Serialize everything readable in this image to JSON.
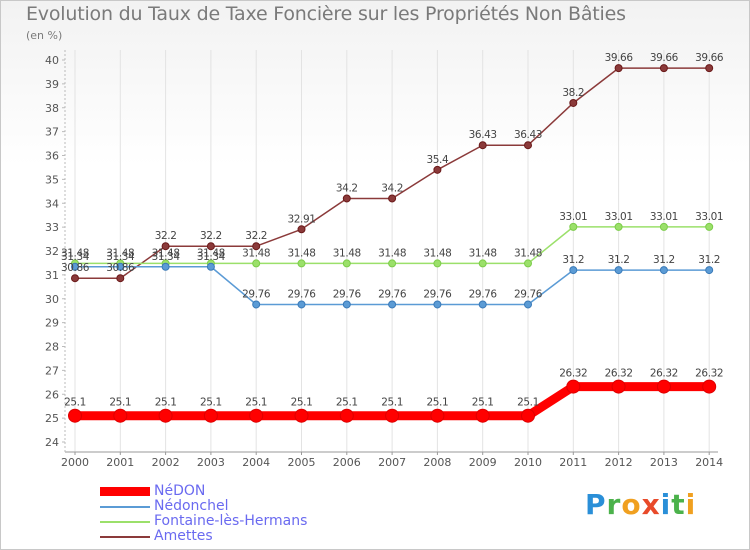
{
  "title": "Evolution du Taux de Taxe Foncière sur les Propriétés Non Bâties",
  "unit": "(en %)",
  "brand": {
    "text": "Proxiti",
    "letters": [
      {
        "ch": "P",
        "color": "#2a8fd8"
      },
      {
        "ch": "r",
        "color": "#4bb24b"
      },
      {
        "ch": "o",
        "color": "#f0a020"
      },
      {
        "ch": "x",
        "color": "#e84a2a"
      },
      {
        "ch": "i",
        "color": "#2a8fd8"
      },
      {
        "ch": "t",
        "color": "#4bb24b"
      },
      {
        "ch": "i",
        "color": "#f0a020"
      }
    ]
  },
  "chart_data": {
    "type": "line",
    "title": "Evolution du Taux de Taxe Foncière sur les Propriétés Non Bâties",
    "ylabel": "(en %)",
    "xlabel": "",
    "x": [
      "2000",
      "2001",
      "2002",
      "2003",
      "2004",
      "2005",
      "2006",
      "2007",
      "2008",
      "2009",
      "2010",
      "2011",
      "2012",
      "2013",
      "2014"
    ],
    "ylim": [
      24,
      40
    ],
    "yticks": [
      "24",
      "25",
      "26",
      "27",
      "28",
      "29",
      "30",
      "31",
      "32",
      "33",
      "34",
      "35",
      "36",
      "37",
      "38",
      "39",
      "40"
    ],
    "grid": "vertical",
    "legend_position": "bottom-left",
    "series": [
      {
        "name": "NéDON",
        "color": "#ff0000",
        "emphasis": true,
        "values": [
          25.1,
          25.1,
          25.1,
          25.1,
          25.1,
          25.1,
          25.1,
          25.1,
          25.1,
          25.1,
          25.1,
          26.32,
          26.32,
          26.32,
          26.32
        ],
        "labels": [
          "25.1",
          "25.1",
          "25.1",
          "25.1",
          "25.1",
          "25.1",
          "25.1",
          "25.1",
          "25.1",
          "25.1",
          "25.1",
          "26.32",
          "26.32",
          "26.32",
          "26.32"
        ]
      },
      {
        "name": "Nédonchel",
        "color": "#5b9bd5",
        "marker": "#3a7ab8",
        "values": [
          31.34,
          31.34,
          31.34,
          31.34,
          29.76,
          29.76,
          29.76,
          29.76,
          29.76,
          29.76,
          29.76,
          31.2,
          31.2,
          31.2,
          31.2
        ],
        "labels": [
          "31.34",
          "31.34",
          "31.34",
          "31.34",
          "29.76",
          "29.76",
          "29.76",
          "29.76",
          "29.76",
          "29.76",
          "29.76",
          "31.2",
          "31.2",
          "31.2",
          "31.2"
        ]
      },
      {
        "name": "Fontaine-lès-Hermans",
        "color": "#9be06a",
        "marker": "#7ccc4a",
        "values": [
          31.48,
          31.48,
          31.48,
          31.48,
          31.48,
          31.48,
          31.48,
          31.48,
          31.48,
          31.48,
          31.48,
          33.01,
          33.01,
          33.01,
          33.01
        ],
        "labels": [
          "31.48",
          "31.48",
          "31.48",
          "31.48",
          "31.48",
          "31.48",
          "31.48",
          "31.48",
          "31.48",
          "31.48",
          "31.48",
          "33.01",
          "33.01",
          "33.01",
          "33.01"
        ]
      },
      {
        "name": "Amettes",
        "color": "#8b3a3a",
        "marker": "#6b1a1a",
        "values": [
          30.86,
          30.86,
          32.2,
          32.2,
          32.2,
          32.91,
          34.2,
          34.2,
          35.4,
          36.43,
          36.43,
          38.2,
          39.66,
          39.66,
          39.66
        ],
        "labels": [
          "30.86",
          "30.86",
          "32.2",
          "32.2",
          "32.2",
          "32.91",
          "34.2",
          "34.2",
          "35.4",
          "36.43",
          "36.43",
          "38.2",
          "39.66",
          "39.66",
          "39.66"
        ]
      }
    ]
  }
}
